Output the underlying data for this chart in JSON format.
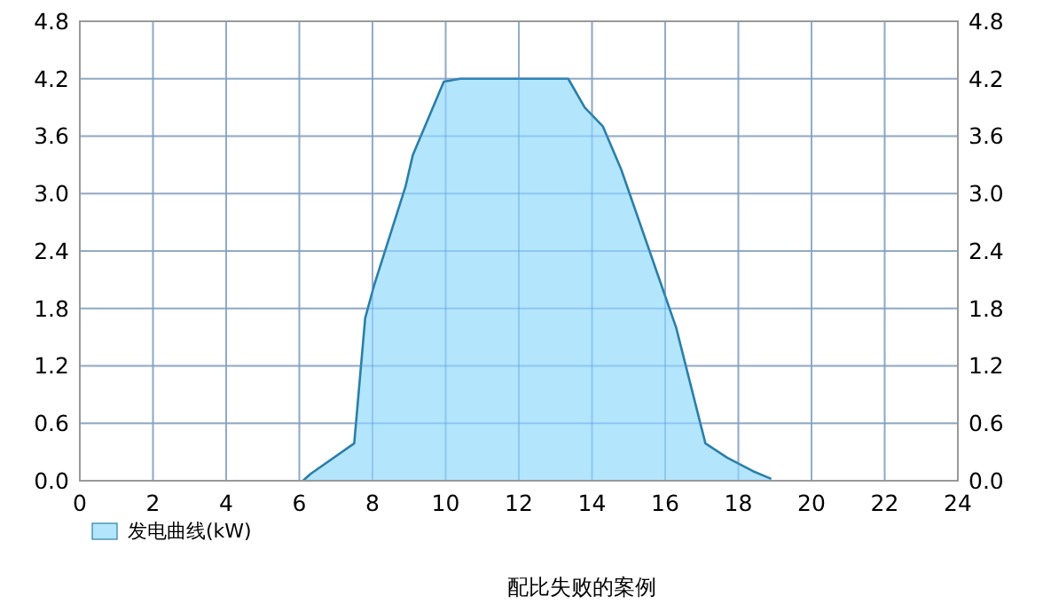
{
  "chart_data": {
    "type": "area",
    "title": "配比失败的案例",
    "xlim": [
      0,
      24
    ],
    "xticks": [
      0,
      2,
      4,
      6,
      8,
      10,
      12,
      14,
      16,
      18,
      20,
      22,
      24
    ],
    "ylim": [
      0,
      4.8
    ],
    "yticks": [
      {
        "value": 0,
        "label": "0.0"
      },
      0.6,
      1.2,
      1.8,
      2.4,
      {
        "value": 3,
        "label": "3.0"
      },
      3.6,
      4.2,
      4.8
    ],
    "y2lim": [
      0,
      4.8
    ],
    "y2ticks": [
      {
        "value": 0,
        "label": "0.0"
      },
      0.6,
      1.2,
      1.8,
      2.4,
      {
        "value": 3,
        "label": "3.0"
      },
      3.6,
      4.2,
      4.8
    ],
    "grid": true,
    "legend": "bottom left",
    "series": [
      {
        "name": "发电曲线(kW)",
        "color": "#b3e5fc",
        "x": [
          6.1,
          6.3,
          7.5,
          7.8,
          8.05,
          8.9,
          9.1,
          9.95,
          10.4,
          13.35,
          13.8,
          14.3,
          14.8,
          15.8,
          16.3,
          17.1,
          17.7,
          18.4,
          18.9
        ],
        "values": [
          0,
          0.07,
          0.39,
          1.7,
          2.05,
          3.07,
          3.4,
          4.17,
          4.2,
          4.2,
          3.9,
          3.7,
          3.25,
          2.15,
          1.6,
          0.39,
          0.24,
          0.1,
          0.02
        ]
      }
    ]
  }
}
